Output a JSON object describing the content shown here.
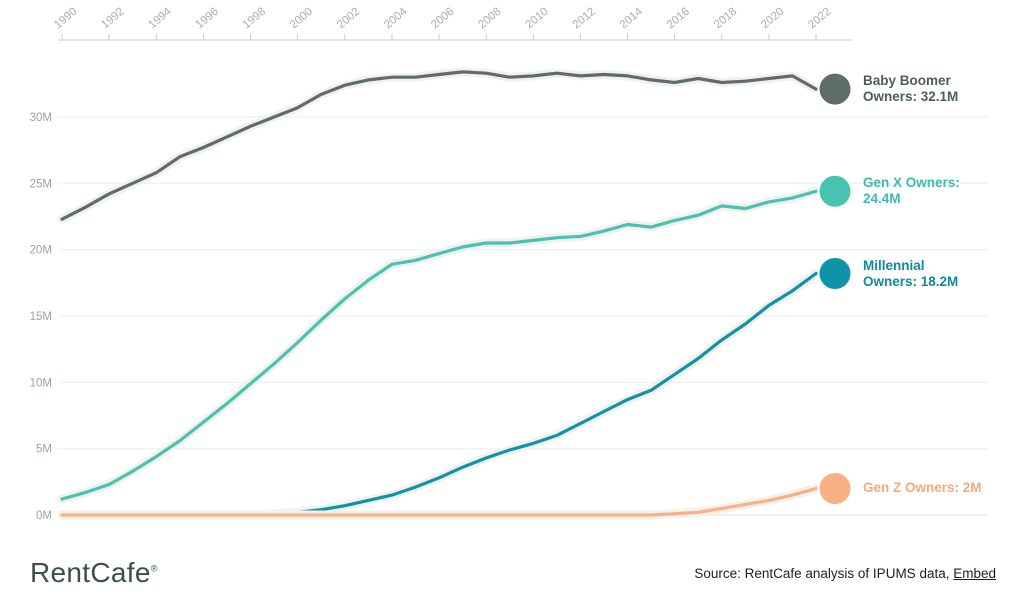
{
  "chart_data": {
    "type": "line",
    "title": "",
    "xlabel": "",
    "ylabel": "",
    "grid": true,
    "legend_position": "right-end-labels",
    "ylim": [
      0,
      34
    ],
    "x": [
      1990,
      1991,
      1992,
      1993,
      1994,
      1995,
      1996,
      1997,
      1998,
      1999,
      2000,
      2001,
      2002,
      2003,
      2004,
      2005,
      2006,
      2007,
      2008,
      2009,
      2010,
      2011,
      2012,
      2013,
      2014,
      2015,
      2016,
      2017,
      2018,
      2019,
      2020,
      2021,
      2022
    ],
    "x_tick_labels": [
      "1990",
      "1992",
      "1994",
      "1996",
      "1998",
      "2000",
      "2002",
      "2004",
      "2006",
      "2008",
      "2010",
      "2012",
      "2014",
      "2016",
      "2018",
      "2020",
      "2022"
    ],
    "y_tick_values": [
      0,
      5,
      10,
      15,
      20,
      25,
      30
    ],
    "y_tick_labels": [
      "0M",
      "5M",
      "10M",
      "15M",
      "20M",
      "25M",
      "30M"
    ],
    "series": [
      {
        "name": "Baby Boomer Owners",
        "color": "#5e6c6a",
        "label_color": "#4d5d5b",
        "end_value": "32.1M",
        "label_lines": [
          "Baby Boomer",
          "Owners: 32.1M"
        ],
        "values": [
          22.3,
          23.2,
          24.2,
          25.0,
          25.8,
          27.0,
          27.7,
          28.5,
          29.3,
          30.0,
          30.7,
          31.7,
          32.4,
          32.8,
          33.0,
          33.0,
          33.2,
          33.4,
          33.3,
          33.0,
          33.1,
          33.3,
          33.1,
          33.2,
          33.1,
          32.8,
          32.6,
          32.9,
          32.6,
          32.7,
          32.9,
          33.1,
          32.1
        ]
      },
      {
        "name": "Gen X Owners",
        "color": "#48c3b1",
        "label_color": "#3dbcab",
        "end_value": "24.4M",
        "label_lines": [
          "Gen X Owners:",
          "24.4M"
        ],
        "values": [
          1.2,
          1.7,
          2.3,
          3.3,
          4.4,
          5.6,
          7.0,
          8.4,
          9.9,
          11.4,
          13.0,
          14.7,
          16.3,
          17.7,
          18.9,
          19.2,
          19.7,
          20.2,
          20.5,
          20.5,
          20.7,
          20.9,
          21.0,
          21.4,
          21.9,
          21.7,
          22.2,
          22.6,
          23.3,
          23.1,
          23.6,
          23.9,
          24.4
        ]
      },
      {
        "name": "Millennial Owners",
        "color": "#0f93a8",
        "label_color": "#0d8a9f",
        "end_value": "18.2M",
        "label_lines": [
          "Millennial",
          "Owners: 18.2M"
        ],
        "values": [
          0,
          0,
          0,
          0,
          0,
          0,
          0,
          0,
          0,
          0.1,
          0.2,
          0.4,
          0.7,
          1.1,
          1.5,
          2.1,
          2.8,
          3.6,
          4.3,
          4.9,
          5.4,
          6.0,
          6.9,
          7.8,
          8.7,
          9.4,
          10.6,
          11.8,
          13.2,
          14.4,
          15.8,
          16.9,
          18.2
        ]
      },
      {
        "name": "Gen Z Owners",
        "color": "#f8b185",
        "label_color": "#f5a97b",
        "end_value": "2M",
        "label_lines": [
          "Gen Z Owners: 2M"
        ],
        "values": [
          0,
          0,
          0,
          0,
          0,
          0,
          0,
          0,
          0,
          0,
          0,
          0,
          0,
          0,
          0,
          0,
          0,
          0,
          0,
          0,
          0,
          0,
          0,
          0,
          0,
          0,
          0.1,
          0.2,
          0.5,
          0.8,
          1.1,
          1.5,
          2.0
        ]
      }
    ]
  },
  "footer": {
    "logo_text": "RentCafe",
    "logo_mark": "®",
    "source_prefix": "Source: RentCafe analysis of IPUMS data, ",
    "embed_label": "Embed"
  }
}
